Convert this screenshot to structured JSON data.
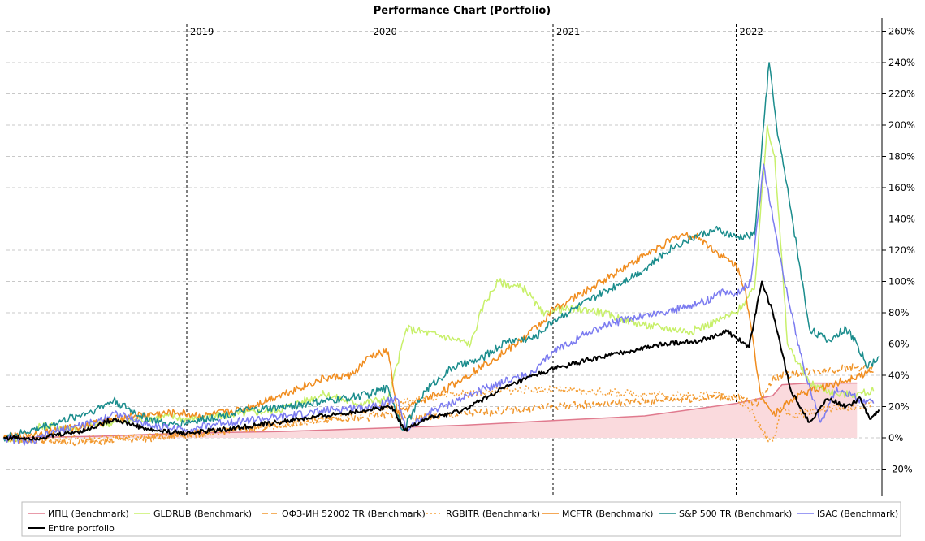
{
  "chart_data": {
    "type": "line",
    "title": "Performance Chart (Portfolio)",
    "y_unit": "%",
    "ylim": [
      -30,
      265
    ],
    "y_ticks": [
      -20,
      0,
      20,
      40,
      60,
      80,
      100,
      120,
      140,
      160,
      180,
      200,
      220,
      240,
      260
    ],
    "y_tick_labels": [
      "-20%",
      "0%",
      "20%",
      "40%",
      "60%",
      "80%",
      "100%",
      "120%",
      "140%",
      "160%",
      "180%",
      "200%",
      "220%",
      "240%",
      "260%"
    ],
    "x_range": [
      2018.0,
      2022.81
    ],
    "year_markers": [
      {
        "x": 2019,
        "label": "2019"
      },
      {
        "x": 2020,
        "label": "2020"
      },
      {
        "x": 2021,
        "label": "2021"
      },
      {
        "x": 2022,
        "label": "2022"
      }
    ],
    "grid": true,
    "legend_position": "bottom",
    "series": [
      {
        "name": "ИПЦ (Benchmark)",
        "color": "#e07a8e",
        "style": "solid",
        "fill": "#fadadd",
        "points": [
          [
            2018.0,
            0
          ],
          [
            2018.5,
            1
          ],
          [
            2019.0,
            3
          ],
          [
            2019.5,
            4
          ],
          [
            2020.0,
            6
          ],
          [
            2020.5,
            8
          ],
          [
            2021.0,
            11
          ],
          [
            2021.5,
            14
          ],
          [
            2022.0,
            22
          ],
          [
            2022.2,
            27
          ],
          [
            2022.25,
            34
          ],
          [
            2022.4,
            35
          ],
          [
            2022.66,
            35
          ]
        ]
      },
      {
        "name": "GLDRUB (Benchmark)",
        "color": "#c8f06a",
        "style": "solid",
        "points": [
          [
            2018.0,
            0
          ],
          [
            2018.15,
            -2
          ],
          [
            2018.2,
            8
          ],
          [
            2018.4,
            6
          ],
          [
            2018.6,
            10
          ],
          [
            2018.9,
            14
          ],
          [
            2019.0,
            12
          ],
          [
            2019.25,
            15
          ],
          [
            2019.5,
            18
          ],
          [
            2019.75,
            28
          ],
          [
            2019.92,
            22
          ],
          [
            2020.1,
            25
          ],
          [
            2020.2,
            70
          ],
          [
            2020.4,
            65
          ],
          [
            2020.55,
            60
          ],
          [
            2020.62,
            85
          ],
          [
            2020.7,
            100
          ],
          [
            2020.85,
            95
          ],
          [
            2020.95,
            78
          ],
          [
            2021.0,
            82
          ],
          [
            2021.2,
            82
          ],
          [
            2021.5,
            72
          ],
          [
            2021.75,
            68
          ],
          [
            2021.9,
            75
          ],
          [
            2022.0,
            80
          ],
          [
            2022.1,
            95
          ],
          [
            2022.17,
            200
          ],
          [
            2022.21,
            180
          ],
          [
            2022.28,
            60
          ],
          [
            2022.4,
            35
          ],
          [
            2022.55,
            28
          ],
          [
            2022.66,
            28
          ],
          [
            2022.75,
            30
          ]
        ]
      },
      {
        "name": "ОФЗ-ИН 52002 TR (Benchmark)",
        "color": "#f0962c",
        "style": "dashed",
        "points": [
          [
            2018.0,
            0
          ],
          [
            2018.3,
            -3
          ],
          [
            2018.5,
            -2
          ],
          [
            2018.8,
            0
          ],
          [
            2019.0,
            2
          ],
          [
            2019.25,
            5
          ],
          [
            2019.5,
            8
          ],
          [
            2019.8,
            13
          ],
          [
            2019.95,
            12
          ],
          [
            2020.05,
            15
          ],
          [
            2020.2,
            13
          ],
          [
            2020.4,
            14
          ],
          [
            2020.6,
            16
          ],
          [
            2020.8,
            18
          ],
          [
            2021.0,
            20
          ],
          [
            2021.3,
            22
          ],
          [
            2021.6,
            24
          ],
          [
            2021.9,
            26
          ],
          [
            2022.0,
            26
          ],
          [
            2022.12,
            22
          ],
          [
            2022.2,
            38
          ],
          [
            2022.35,
            42
          ],
          [
            2022.55,
            44
          ],
          [
            2022.66,
            45
          ],
          [
            2022.75,
            44
          ]
        ]
      },
      {
        "name": "RGBITR (Benchmark)",
        "color": "#f5a038",
        "style": "dotted",
        "points": [
          [
            2018.0,
            0
          ],
          [
            2018.3,
            -1
          ],
          [
            2018.6,
            0
          ],
          [
            2018.9,
            1
          ],
          [
            2019.2,
            4
          ],
          [
            2019.5,
            8
          ],
          [
            2019.8,
            12
          ],
          [
            2020.0,
            18
          ],
          [
            2020.15,
            22
          ],
          [
            2020.3,
            25
          ],
          [
            2020.5,
            28
          ],
          [
            2020.7,
            30
          ],
          [
            2020.9,
            31
          ],
          [
            2021.1,
            30
          ],
          [
            2021.3,
            29
          ],
          [
            2021.5,
            28
          ],
          [
            2021.7,
            27
          ],
          [
            2021.9,
            28
          ],
          [
            2022.0,
            25
          ],
          [
            2022.08,
            18
          ],
          [
            2022.15,
            2
          ],
          [
            2022.2,
            -2
          ],
          [
            2022.25,
            20
          ],
          [
            2022.3,
            14
          ],
          [
            2022.45,
            18
          ],
          [
            2022.66,
            20
          ],
          [
            2022.75,
            22
          ]
        ]
      },
      {
        "name": "MCFTR (Benchmark)",
        "color": "#f08c1e",
        "style": "solid",
        "points": [
          [
            2018.0,
            0
          ],
          [
            2018.2,
            3
          ],
          [
            2018.45,
            8
          ],
          [
            2018.7,
            14
          ],
          [
            2018.95,
            16
          ],
          [
            2019.1,
            14
          ],
          [
            2019.3,
            18
          ],
          [
            2019.5,
            27
          ],
          [
            2019.75,
            38
          ],
          [
            2019.9,
            40
          ],
          [
            2020.0,
            52
          ],
          [
            2020.1,
            55
          ],
          [
            2020.15,
            15
          ],
          [
            2020.25,
            22
          ],
          [
            2020.4,
            30
          ],
          [
            2020.6,
            45
          ],
          [
            2020.8,
            60
          ],
          [
            2020.95,
            75
          ],
          [
            2021.0,
            82
          ],
          [
            2021.2,
            95
          ],
          [
            2021.4,
            110
          ],
          [
            2021.55,
            120
          ],
          [
            2021.7,
            130
          ],
          [
            2021.8,
            128
          ],
          [
            2021.9,
            118
          ],
          [
            2022.0,
            110
          ],
          [
            2022.05,
            95
          ],
          [
            2022.13,
            30
          ],
          [
            2022.2,
            15
          ],
          [
            2022.35,
            28
          ],
          [
            2022.55,
            35
          ],
          [
            2022.66,
            40
          ],
          [
            2022.75,
            42
          ]
        ]
      },
      {
        "name": "S&P 500 TR (Benchmark)",
        "color": "#1a8c8c",
        "style": "solid",
        "points": [
          [
            2018.0,
            0
          ],
          [
            2018.1,
            3
          ],
          [
            2018.3,
            10
          ],
          [
            2018.5,
            18
          ],
          [
            2018.6,
            24
          ],
          [
            2018.75,
            14
          ],
          [
            2018.9,
            8
          ],
          [
            2019.1,
            12
          ],
          [
            2019.3,
            17
          ],
          [
            2019.55,
            20
          ],
          [
            2019.8,
            24
          ],
          [
            2020.0,
            28
          ],
          [
            2020.1,
            32
          ],
          [
            2020.18,
            5
          ],
          [
            2020.3,
            30
          ],
          [
            2020.45,
            45
          ],
          [
            2020.6,
            50
          ],
          [
            2020.75,
            62
          ],
          [
            2020.9,
            64
          ],
          [
            2021.0,
            75
          ],
          [
            2021.2,
            88
          ],
          [
            2021.35,
            98
          ],
          [
            2021.5,
            108
          ],
          [
            2021.65,
            122
          ],
          [
            2021.8,
            130
          ],
          [
            2021.9,
            133
          ],
          [
            2022.0,
            128
          ],
          [
            2022.1,
            130
          ],
          [
            2022.15,
            200
          ],
          [
            2022.18,
            240
          ],
          [
            2022.22,
            200
          ],
          [
            2022.3,
            145
          ],
          [
            2022.4,
            70
          ],
          [
            2022.5,
            62
          ],
          [
            2022.6,
            70
          ],
          [
            2022.66,
            60
          ],
          [
            2022.72,
            45
          ],
          [
            2022.78,
            52
          ]
        ]
      },
      {
        "name": "ISAC (Benchmark)",
        "color": "#7b7bf0",
        "style": "solid",
        "points": [
          [
            2018.0,
            0
          ],
          [
            2018.15,
            -3
          ],
          [
            2018.3,
            5
          ],
          [
            2018.5,
            10
          ],
          [
            2018.6,
            16
          ],
          [
            2018.8,
            8
          ],
          [
            2019.0,
            5
          ],
          [
            2019.2,
            10
          ],
          [
            2019.5,
            13
          ],
          [
            2019.8,
            18
          ],
          [
            2020.0,
            20
          ],
          [
            2020.15,
            25
          ],
          [
            2020.2,
            5
          ],
          [
            2020.35,
            18
          ],
          [
            2020.5,
            25
          ],
          [
            2020.7,
            35
          ],
          [
            2020.9,
            42
          ],
          [
            2021.0,
            55
          ],
          [
            2021.2,
            68
          ],
          [
            2021.4,
            76
          ],
          [
            2021.6,
            80
          ],
          [
            2021.8,
            86
          ],
          [
            2021.95,
            94
          ],
          [
            2022.0,
            92
          ],
          [
            2022.08,
            100
          ],
          [
            2022.15,
            175
          ],
          [
            2022.2,
            140
          ],
          [
            2022.3,
            80
          ],
          [
            2022.38,
            40
          ],
          [
            2022.46,
            10
          ],
          [
            2022.55,
            32
          ],
          [
            2022.66,
            25
          ],
          [
            2022.75,
            22
          ]
        ]
      },
      {
        "name": "Entire portfolio",
        "color": "#000000",
        "style": "solid",
        "width": 2,
        "points": [
          [
            2018.0,
            0
          ],
          [
            2018.2,
            0
          ],
          [
            2018.45,
            5
          ],
          [
            2018.6,
            12
          ],
          [
            2018.8,
            5
          ],
          [
            2019.0,
            3
          ],
          [
            2019.25,
            6
          ],
          [
            2019.5,
            10
          ],
          [
            2019.75,
            14
          ],
          [
            2020.0,
            18
          ],
          [
            2020.12,
            20
          ],
          [
            2020.19,
            5
          ],
          [
            2020.3,
            12
          ],
          [
            2020.5,
            17
          ],
          [
            2020.7,
            30
          ],
          [
            2020.9,
            40
          ],
          [
            2021.0,
            44
          ],
          [
            2021.2,
            50
          ],
          [
            2021.4,
            55
          ],
          [
            2021.6,
            60
          ],
          [
            2021.8,
            62
          ],
          [
            2021.95,
            68
          ],
          [
            2022.0,
            64
          ],
          [
            2022.07,
            58
          ],
          [
            2022.14,
            100
          ],
          [
            2022.2,
            80
          ],
          [
            2022.3,
            30
          ],
          [
            2022.4,
            10
          ],
          [
            2022.5,
            25
          ],
          [
            2022.6,
            20
          ],
          [
            2022.68,
            25
          ],
          [
            2022.73,
            12
          ],
          [
            2022.78,
            18
          ]
        ]
      }
    ]
  }
}
